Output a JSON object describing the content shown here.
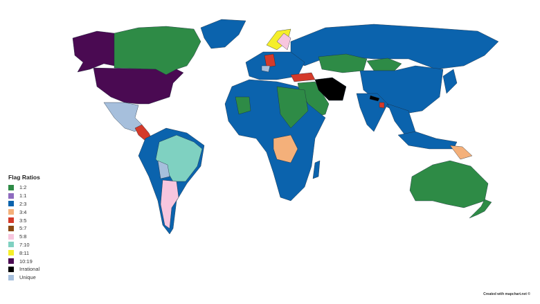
{
  "legend": {
    "title": "Flag Ratios",
    "items": [
      {
        "label": "1:2",
        "color": "#2e8b46"
      },
      {
        "label": "1:1",
        "color": "#8e6bbf"
      },
      {
        "label": "2:3",
        "color": "#0b63ad"
      },
      {
        "label": "3:4",
        "color": "#f4b07a"
      },
      {
        "label": "3:5",
        "color": "#d43a2a"
      },
      {
        "label": "5:7",
        "color": "#8b4a12"
      },
      {
        "label": "5:8",
        "color": "#f7c6de"
      },
      {
        "label": "7:10",
        "color": "#7fd1c1"
      },
      {
        "label": "8:11",
        "color": "#f5ee2a"
      },
      {
        "label": "10:19",
        "color": "#4a0a52"
      },
      {
        "label": "Irrational",
        "color": "#000000"
      },
      {
        "label": "Unique",
        "color": "#a6bfdc"
      }
    ]
  },
  "credit": "Created with mapchart.net ©"
}
